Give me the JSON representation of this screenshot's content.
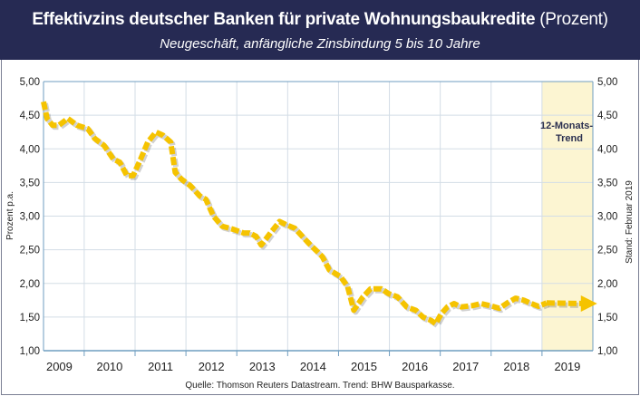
{
  "chart_data": {
    "type": "line",
    "title": "Effektivzins deutscher Banken für private Wohnungsbaukredite",
    "title_unit": "(Prozent)",
    "subtitle": "Neugeschäft, anfängliche Zinsbindung 5 bis 10 Jahre",
    "ylabel": "Prozent p.a.",
    "right_label": "Stand: Februar 2019",
    "source": "Quelle: Thomson Reuters Datastream. Trend: BHW Bausparkasse.",
    "trend_label_1": "12-Monats-",
    "trend_label_2": "Trend",
    "ylim": [
      1.0,
      5.0
    ],
    "xlim": [
      2009.2,
      2020.0
    ],
    "yticks": [
      "1,00",
      "1,50",
      "2,00",
      "2,50",
      "3,00",
      "3,50",
      "4,00",
      "4,50",
      "5,00"
    ],
    "ytick_values": [
      1.0,
      1.5,
      2.0,
      2.5,
      3.0,
      3.5,
      4.0,
      4.5,
      5.0
    ],
    "xticks": [
      "2009",
      "2010",
      "2011",
      "2012",
      "2013",
      "2014",
      "2015",
      "2016",
      "2017",
      "2018",
      "2019"
    ],
    "grid": true,
    "trend_region": [
      2019.0,
      2020.0
    ],
    "series": [
      {
        "name": "Effektivzins",
        "color": "#f5c300",
        "points": [
          [
            2009.2,
            4.7
          ],
          [
            2009.27,
            4.45
          ],
          [
            2009.38,
            4.35
          ],
          [
            2009.5,
            4.35
          ],
          [
            2009.68,
            4.45
          ],
          [
            2009.86,
            4.35
          ],
          [
            2010.07,
            4.3
          ],
          [
            2010.21,
            4.15
          ],
          [
            2010.39,
            4.05
          ],
          [
            2010.57,
            3.85
          ],
          [
            2010.7,
            3.8
          ],
          [
            2010.84,
            3.6
          ],
          [
            2010.96,
            3.6
          ],
          [
            2011.11,
            3.85
          ],
          [
            2011.25,
            4.1
          ],
          [
            2011.41,
            4.25
          ],
          [
            2011.55,
            4.2
          ],
          [
            2011.7,
            4.1
          ],
          [
            2011.79,
            3.65
          ],
          [
            2011.91,
            3.55
          ],
          [
            2012.09,
            3.45
          ],
          [
            2012.27,
            3.3
          ],
          [
            2012.39,
            3.25
          ],
          [
            2012.54,
            3.0
          ],
          [
            2012.71,
            2.85
          ],
          [
            2012.95,
            2.8
          ],
          [
            2013.13,
            2.75
          ],
          [
            2013.25,
            2.75
          ],
          [
            2013.38,
            2.7
          ],
          [
            2013.48,
            2.57
          ],
          [
            2013.66,
            2.75
          ],
          [
            2013.84,
            2.92
          ],
          [
            2013.98,
            2.87
          ],
          [
            2014.14,
            2.82
          ],
          [
            2014.41,
            2.6
          ],
          [
            2014.68,
            2.4
          ],
          [
            2014.82,
            2.2
          ],
          [
            2015.04,
            2.1
          ],
          [
            2015.18,
            1.95
          ],
          [
            2015.3,
            1.6
          ],
          [
            2015.48,
            1.8
          ],
          [
            2015.63,
            1.92
          ],
          [
            2015.84,
            1.92
          ],
          [
            2015.98,
            1.85
          ],
          [
            2016.16,
            1.8
          ],
          [
            2016.34,
            1.65
          ],
          [
            2016.52,
            1.6
          ],
          [
            2016.66,
            1.5
          ],
          [
            2016.82,
            1.45
          ],
          [
            2016.91,
            1.4
          ],
          [
            2017.02,
            1.55
          ],
          [
            2017.14,
            1.65
          ],
          [
            2017.27,
            1.7
          ],
          [
            2017.41,
            1.65
          ],
          [
            2017.63,
            1.67
          ],
          [
            2017.8,
            1.7
          ],
          [
            2017.98,
            1.67
          ],
          [
            2018.16,
            1.63
          ],
          [
            2018.34,
            1.72
          ],
          [
            2018.48,
            1.78
          ],
          [
            2018.64,
            1.75
          ],
          [
            2018.79,
            1.7
          ],
          [
            2018.93,
            1.66
          ],
          [
            2019.09,
            1.71
          ]
        ]
      },
      {
        "name": "12-Monats-Trend",
        "color": "#f5c300",
        "points": [
          [
            2019.09,
            1.71
          ],
          [
            2019.8,
            1.7
          ]
        ]
      }
    ]
  },
  "colors": {
    "header": "#262a53",
    "line": "#f5c300",
    "trend_bg": "#fcf5d2",
    "grid": "#d3dde6",
    "axis": "#6f9dc0"
  }
}
